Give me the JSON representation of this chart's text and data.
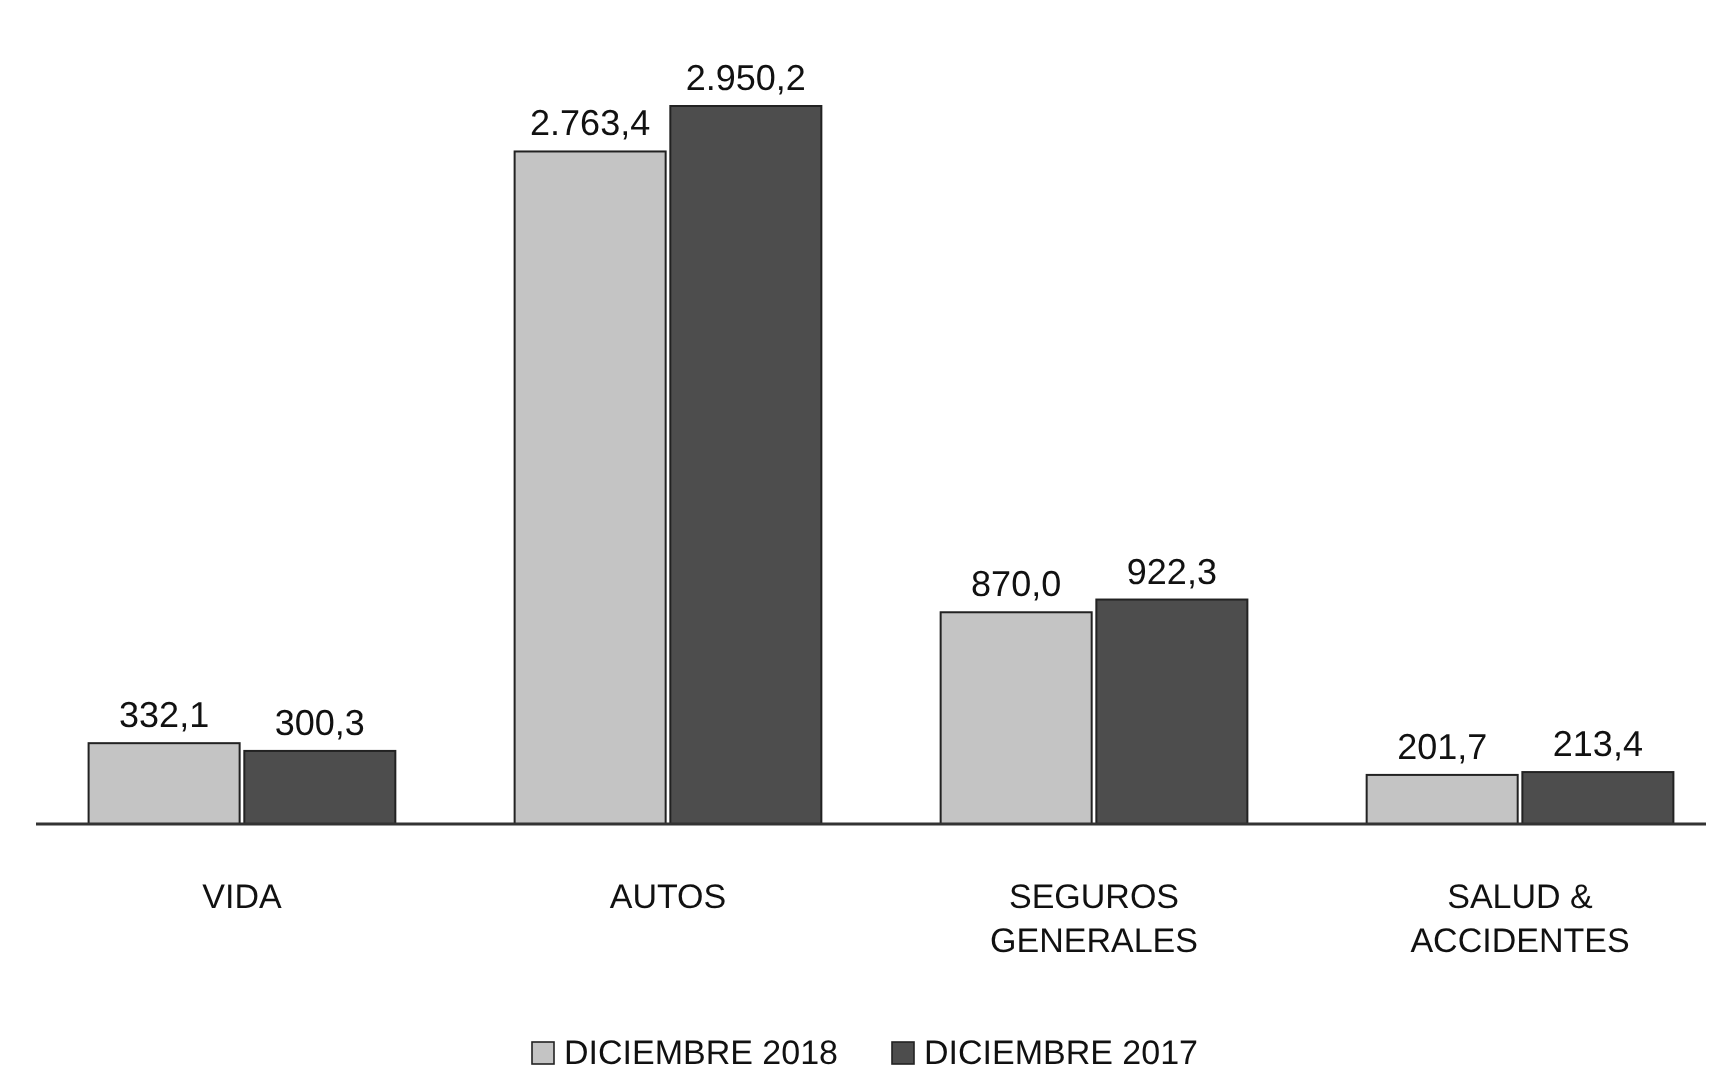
{
  "chart_data": {
    "type": "bar",
    "categories": [
      "VIDA",
      "AUTOS",
      "SEGUROS GENERALES",
      "SALUD & ACCIDENTES"
    ],
    "series": [
      {
        "name": "DICIEMBRE 2018",
        "color": "#c4c4c4",
        "values": [
          332.1,
          2763.4,
          870.0,
          201.7
        ],
        "value_labels": [
          "332,1",
          "2.763,4",
          "870,0",
          "201,7"
        ]
      },
      {
        "name": "DICIEMBRE 2017",
        "color": "#4d4d4d",
        "values": [
          300.3,
          2950.2,
          922.3,
          213.4
        ],
        "value_labels": [
          "300,3",
          "2.950,2",
          "922,3",
          "213,4"
        ]
      }
    ],
    "legend": "bottom"
  }
}
